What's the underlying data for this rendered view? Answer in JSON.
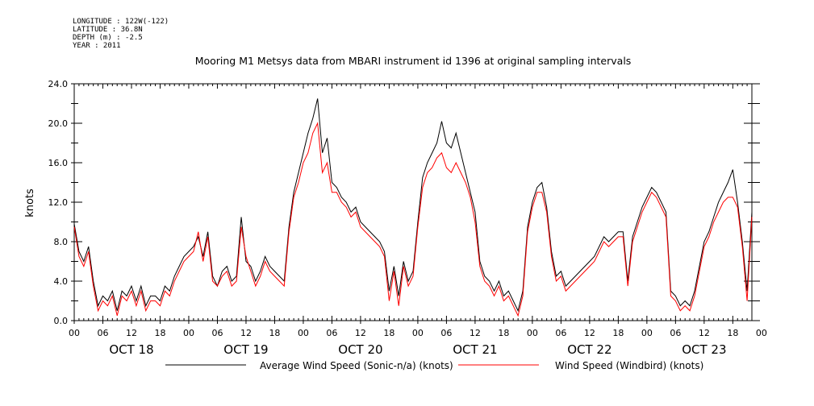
{
  "meta": {
    "longitude": "LONGITUDE : 122W(-122)",
    "latitude": "LATITUDE : 36.8N",
    "depth": "DEPTH (m) : -2.5",
    "year": "YEAR : 2011"
  },
  "chart_data": {
    "type": "line",
    "title": "Mooring M1 Metsys data from MBARI instrument id 1396 at original sampling intervals",
    "xlabel": "",
    "ylabel": "knots",
    "ylim": [
      0,
      24
    ],
    "xlim_hours": [
      0,
      142
    ],
    "y_ticks": [
      "0.0",
      "4.0",
      "8.0",
      "12.0",
      "16.0",
      "20.0",
      "24.0"
    ],
    "x_hour_ticks": [
      "00",
      "06",
      "12",
      "18",
      "00",
      "06",
      "12",
      "18",
      "00",
      "06",
      "12",
      "18",
      "00",
      "06",
      "12",
      "18",
      "00",
      "06",
      "12",
      "18",
      "00",
      "06",
      "12",
      "18",
      "00"
    ],
    "day_labels": [
      "OCT 18",
      "OCT 19",
      "OCT 20",
      "OCT 21",
      "OCT 22",
      "OCT 23"
    ],
    "legend_placement": "bottom",
    "series": [
      {
        "name": "Average Wind Speed (Sonic-n/a) (knots)",
        "color": "#000000",
        "x": [
          0,
          1,
          2,
          3,
          4,
          5,
          6,
          7,
          8,
          9,
          10,
          11,
          12,
          13,
          14,
          15,
          16,
          17,
          18,
          19,
          20,
          21,
          22,
          23,
          24,
          25,
          26,
          27,
          28,
          29,
          30,
          31,
          32,
          33,
          34,
          35,
          36,
          37,
          38,
          39,
          40,
          41,
          42,
          43,
          44,
          45,
          46,
          47,
          48,
          49,
          50,
          51,
          52,
          53,
          54,
          55,
          56,
          57,
          58,
          59,
          60,
          61,
          62,
          63,
          64,
          65,
          66,
          67,
          68,
          69,
          70,
          71,
          72,
          73,
          74,
          75,
          76,
          77,
          78,
          79,
          80,
          81,
          82,
          83,
          84,
          85,
          86,
          87,
          88,
          89,
          90,
          91,
          92,
          93,
          94,
          95,
          96,
          97,
          98,
          99,
          100,
          101,
          102,
          103,
          104,
          105,
          106,
          107,
          108,
          109,
          110,
          111,
          112,
          113,
          114,
          115,
          116,
          117,
          118,
          119,
          120,
          121,
          122,
          123,
          124,
          125,
          126,
          127,
          128,
          129,
          130,
          131,
          132,
          133,
          134,
          135,
          136,
          137,
          138,
          139,
          140,
          141,
          142
        ],
        "y": [
          9.8,
          7.0,
          6.0,
          7.5,
          4.0,
          1.5,
          2.5,
          2.0,
          3.0,
          1.0,
          3.0,
          2.5,
          3.5,
          2.0,
          3.5,
          1.5,
          2.5,
          2.5,
          2.0,
          3.5,
          3.0,
          4.5,
          5.5,
          6.5,
          7.0,
          7.5,
          8.5,
          6.5,
          9.0,
          4.5,
          3.5,
          5.0,
          5.5,
          4.0,
          4.5,
          10.5,
          6.0,
          5.5,
          4.0,
          5.0,
          6.5,
          5.5,
          5.0,
          4.5,
          4.0,
          9.5,
          13.0,
          15.0,
          17.0,
          19.0,
          20.5,
          22.5,
          17.0,
          18.5,
          14.0,
          13.5,
          12.5,
          12.0,
          11.0,
          11.5,
          10.0,
          9.5,
          9.0,
          8.5,
          8.0,
          7.0,
          3.0,
          5.5,
          2.5,
          6.0,
          4.0,
          5.0,
          10.0,
          14.5,
          16.0,
          17.0,
          18.0,
          20.2,
          18.0,
          17.5,
          19.0,
          17.0,
          15.0,
          13.0,
          11.0,
          6.0,
          4.5,
          4.0,
          3.0,
          4.0,
          2.5,
          3.0,
          2.0,
          1.0,
          3.0,
          9.5,
          12.0,
          13.5,
          14.0,
          11.5,
          7.0,
          4.5,
          5.0,
          3.5,
          4.0,
          4.5,
          5.0,
          5.5,
          6.0,
          6.5,
          7.5,
          8.5,
          8.0,
          8.5,
          9.0,
          9.0,
          4.0,
          8.5,
          10.0,
          11.5,
          12.5,
          13.5,
          13.0,
          12.0,
          11.0,
          3.0,
          2.5,
          1.5,
          2.0,
          1.5,
          3.0,
          5.5,
          8.0,
          9.0,
          10.5,
          12.0,
          13.0,
          14.0,
          15.3,
          12.0,
          8.0,
          3.0,
          11.0
        ]
      },
      {
        "name": "Wind Speed (Windbird) (knots)",
        "color": "#ff0000",
        "x": [
          0,
          1,
          2,
          3,
          4,
          5,
          6,
          7,
          8,
          9,
          10,
          11,
          12,
          13,
          14,
          15,
          16,
          17,
          18,
          19,
          20,
          21,
          22,
          23,
          24,
          25,
          26,
          27,
          28,
          29,
          30,
          31,
          32,
          33,
          34,
          35,
          36,
          37,
          38,
          39,
          40,
          41,
          42,
          43,
          44,
          45,
          46,
          47,
          48,
          49,
          50,
          51,
          52,
          53,
          54,
          55,
          56,
          57,
          58,
          59,
          60,
          61,
          62,
          63,
          64,
          65,
          66,
          67,
          68,
          69,
          70,
          71,
          72,
          73,
          74,
          75,
          76,
          77,
          78,
          79,
          80,
          81,
          82,
          83,
          84,
          85,
          86,
          87,
          88,
          89,
          90,
          91,
          92,
          93,
          94,
          95,
          96,
          97,
          98,
          99,
          100,
          101,
          102,
          103,
          104,
          105,
          106,
          107,
          108,
          109,
          110,
          111,
          112,
          113,
          114,
          115,
          116,
          117,
          118,
          119,
          120,
          121,
          122,
          123,
          124,
          125,
          126,
          127,
          128,
          129,
          130,
          131,
          132,
          133,
          134,
          135,
          136,
          137,
          138,
          139,
          140,
          141,
          142
        ],
        "y": [
          9.5,
          6.5,
          5.5,
          7.0,
          3.5,
          1.0,
          2.0,
          1.5,
          2.5,
          0.5,
          2.5,
          2.0,
          3.0,
          1.5,
          3.0,
          1.0,
          2.0,
          2.0,
          1.5,
          3.0,
          2.5,
          4.0,
          5.0,
          6.0,
          6.5,
          7.0,
          9.0,
          6.0,
          8.5,
          4.0,
          3.5,
          4.5,
          5.0,
          3.5,
          4.0,
          9.5,
          6.5,
          5.0,
          3.5,
          4.5,
          6.0,
          5.0,
          4.5,
          4.0,
          3.5,
          9.0,
          12.5,
          14.0,
          16.0,
          17.0,
          19.0,
          20.0,
          15.0,
          16.0,
          13.0,
          13.0,
          12.0,
          11.5,
          10.5,
          11.0,
          9.5,
          9.0,
          8.5,
          8.0,
          7.5,
          6.5,
          2.0,
          5.0,
          1.5,
          5.5,
          3.5,
          4.5,
          9.5,
          13.5,
          15.0,
          15.5,
          16.5,
          17.0,
          15.5,
          15.0,
          16.0,
          15.0,
          14.0,
          12.5,
          10.0,
          5.5,
          4.0,
          3.5,
          2.5,
          3.5,
          2.0,
          2.5,
          1.5,
          0.5,
          2.5,
          9.0,
          11.5,
          13.0,
          13.0,
          11.0,
          6.5,
          4.0,
          4.5,
          3.0,
          3.5,
          4.0,
          4.5,
          5.0,
          5.5,
          6.0,
          7.0,
          8.0,
          7.5,
          8.0,
          8.5,
          8.5,
          3.5,
          8.0,
          9.5,
          11.0,
          12.0,
          13.0,
          12.5,
          11.5,
          10.5,
          2.5,
          2.0,
          1.0,
          1.5,
          1.0,
          2.5,
          5.0,
          7.5,
          8.5,
          10.0,
          11.0,
          12.0,
          12.5,
          12.5,
          11.5,
          7.5,
          2.0,
          10.5
        ]
      }
    ]
  }
}
